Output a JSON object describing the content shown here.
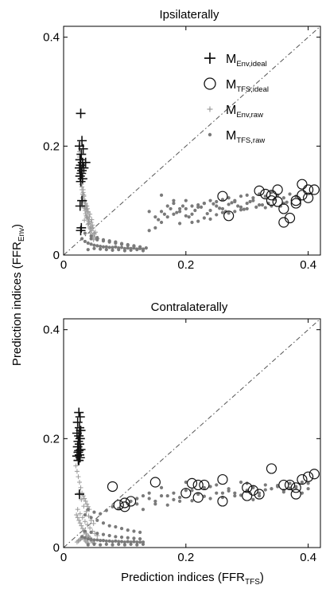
{
  "figure": {
    "ylabel_main": "Prediction indices (FFR",
    "ylabel_sub": "Env",
    "ylabel_end": ")",
    "xlabel_main": "Prediction indices (FFR",
    "xlabel_sub": "TFS",
    "xlabel_end": ")"
  },
  "legend": [
    {
      "label": "M",
      "sub": "Env,ideal",
      "marker": "plus",
      "color": "#111111"
    },
    {
      "label": "M",
      "sub": "TFS,ideal",
      "marker": "circle",
      "color": "#111111"
    },
    {
      "label": "M",
      "sub": "Env,raw",
      "marker": "small-plus",
      "color": "#8c8c8c"
    },
    {
      "label": "M",
      "sub": "TFS,raw",
      "marker": "dot",
      "color": "#7a7a7a"
    }
  ],
  "colors": {
    "ideal": "#111111",
    "raw_env": "#9a9a9a",
    "raw_tfs": "#7a7a7a",
    "diagonal": "#555555"
  },
  "chart_data": [
    {
      "type": "scatter",
      "title": "Ipsilaterally",
      "xlim": [
        0,
        0.42
      ],
      "ylim": [
        0,
        0.42
      ],
      "x_ticks": [
        0,
        0.2,
        0.4
      ],
      "x_tick_labels": [
        "0",
        "0.2",
        "0.4"
      ],
      "y_ticks": [
        0,
        0.2,
        0.4
      ],
      "y_tick_labels": [
        "0",
        "0.2",
        "0.4"
      ],
      "reference_line": "y = x (dash-dot)",
      "series": [
        {
          "name": "M_Env,ideal",
          "marker": "plus",
          "x": [
            0.028,
            0.03,
            0.026,
            0.032,
            0.029,
            0.027,
            0.031,
            0.028,
            0.033,
            0.026,
            0.03,
            0.029,
            0.027,
            0.031,
            0.028,
            0.03,
            0.027,
            0.036,
            0.029,
            0.028
          ],
          "y": [
            0.26,
            0.21,
            0.2,
            0.195,
            0.185,
            0.175,
            0.17,
            0.165,
            0.16,
            0.16,
            0.155,
            0.15,
            0.145,
            0.14,
            0.135,
            0.1,
            0.09,
            0.17,
            0.05,
            0.045
          ]
        },
        {
          "name": "M_TFS,ideal",
          "marker": "circle",
          "x": [
            0.26,
            0.27,
            0.32,
            0.33,
            0.34,
            0.35,
            0.35,
            0.36,
            0.37,
            0.38,
            0.38,
            0.39,
            0.39,
            0.4,
            0.4,
            0.41,
            0.36,
            0.34
          ],
          "y": [
            0.108,
            0.072,
            0.118,
            0.112,
            0.11,
            0.12,
            0.098,
            0.085,
            0.068,
            0.1,
            0.095,
            0.13,
            0.11,
            0.12,
            0.105,
            0.12,
            0.06,
            0.1
          ]
        },
        {
          "name": "M_Env,raw",
          "marker": "small-plus",
          "x": [
            0.025,
            0.028,
            0.03,
            0.032,
            0.035,
            0.038,
            0.04,
            0.042,
            0.045,
            0.048,
            0.05,
            0.026,
            0.029,
            0.033,
            0.036,
            0.039,
            0.043,
            0.046,
            0.027,
            0.031,
            0.034,
            0.037,
            0.041,
            0.044,
            0.03,
            0.035,
            0.04,
            0.045,
            0.05,
            0.055,
            0.028,
            0.032,
            0.036,
            0.04,
            0.047,
            0.052,
            0.026,
            0.03,
            0.034,
            0.038,
            0.042,
            0.048,
            0.029,
            0.033,
            0.037,
            0.041,
            0.046,
            0.051,
            0.027,
            0.031,
            0.035,
            0.039,
            0.043,
            0.049,
            0.032,
            0.036,
            0.04,
            0.044,
            0.03,
            0.034
          ],
          "y": [
            0.2,
            0.16,
            0.14,
            0.12,
            0.1,
            0.09,
            0.08,
            0.07,
            0.06,
            0.05,
            0.04,
            0.18,
            0.13,
            0.11,
            0.095,
            0.085,
            0.075,
            0.065,
            0.15,
            0.105,
            0.088,
            0.072,
            0.058,
            0.048,
            0.12,
            0.082,
            0.066,
            0.052,
            0.038,
            0.03,
            0.17,
            0.115,
            0.092,
            0.078,
            0.055,
            0.042,
            0.19,
            0.125,
            0.098,
            0.07,
            0.06,
            0.035,
            0.145,
            0.108,
            0.084,
            0.062,
            0.045,
            0.032,
            0.16,
            0.112,
            0.086,
            0.068,
            0.05,
            0.028,
            0.1,
            0.076,
            0.056,
            0.04,
            0.09,
            0.064
          ]
        },
        {
          "name": "M_TFS,raw",
          "marker": "dot",
          "x": [
            0.03,
            0.035,
            0.04,
            0.045,
            0.05,
            0.055,
            0.06,
            0.065,
            0.07,
            0.075,
            0.08,
            0.085,
            0.09,
            0.095,
            0.1,
            0.105,
            0.11,
            0.115,
            0.12,
            0.125,
            0.13,
            0.045,
            0.055,
            0.065,
            0.075,
            0.085,
            0.095,
            0.105,
            0.115,
            0.125,
            0.04,
            0.05,
            0.06,
            0.07,
            0.08,
            0.09,
            0.1,
            0.11,
            0.12,
            0.13,
            0.035,
            0.045,
            0.055,
            0.065,
            0.075,
            0.085,
            0.095,
            0.105,
            0.115,
            0.125,
            0.135,
            0.14,
            0.15,
            0.16,
            0.17,
            0.18,
            0.19,
            0.2,
            0.21,
            0.22,
            0.23,
            0.24,
            0.25,
            0.26,
            0.27,
            0.28,
            0.29,
            0.3,
            0.31,
            0.32,
            0.33,
            0.34,
            0.35,
            0.36,
            0.37,
            0.38,
            0.15,
            0.16,
            0.17,
            0.18,
            0.19,
            0.2,
            0.21,
            0.22,
            0.23,
            0.24,
            0.25,
            0.26,
            0.27,
            0.28,
            0.29,
            0.3,
            0.31,
            0.32,
            0.14,
            0.155,
            0.165,
            0.175,
            0.185,
            0.195,
            0.205,
            0.215,
            0.225,
            0.235,
            0.245,
            0.255,
            0.265,
            0.275,
            0.285,
            0.295,
            0.305,
            0.315,
            0.325,
            0.335,
            0.345,
            0.355,
            0.365,
            0.16,
            0.18,
            0.2,
            0.22,
            0.24,
            0.26,
            0.28,
            0.3,
            0.34,
            0.36,
            0.19,
            0.21,
            0.23,
            0.25,
            0.27,
            0.29,
            0.33
          ],
          "y": [
            0.03,
            0.025,
            0.022,
            0.02,
            0.018,
            0.017,
            0.016,
            0.015,
            0.015,
            0.014,
            0.014,
            0.015,
            0.013,
            0.014,
            0.012,
            0.013,
            0.012,
            0.013,
            0.011,
            0.012,
            0.011,
            0.03,
            0.028,
            0.026,
            0.024,
            0.022,
            0.02,
            0.018,
            0.016,
            0.014,
            0.01,
            0.012,
            0.011,
            0.01,
            0.009,
            0.01,
            0.008,
            0.009,
            0.01,
            0.008,
            0.04,
            0.035,
            0.032,
            0.028,
            0.026,
            0.024,
            0.021,
            0.019,
            0.017,
            0.015,
            0.013,
            0.045,
            0.05,
            0.06,
            0.07,
            0.075,
            0.08,
            0.085,
            0.09,
            0.092,
            0.095,
            0.1,
            0.098,
            0.102,
            0.105,
            0.1,
            0.108,
            0.11,
            0.105,
            0.112,
            0.108,
            0.115,
            0.11,
            0.105,
            0.112,
            0.108,
            0.07,
            0.08,
            0.09,
            0.095,
            0.085,
            0.1,
            0.075,
            0.088,
            0.095,
            0.082,
            0.09,
            0.085,
            0.093,
            0.098,
            0.088,
            0.095,
            0.1,
            0.092,
            0.08,
            0.065,
            0.075,
            0.085,
            0.078,
            0.09,
            0.07,
            0.082,
            0.088,
            0.076,
            0.094,
            0.086,
            0.08,
            0.096,
            0.09,
            0.084,
            0.098,
            0.088,
            0.092,
            0.095,
            0.102,
            0.09,
            0.097,
            0.11,
            0.1,
            0.072,
            0.062,
            0.066,
            0.078,
            0.08,
            0.085,
            0.09,
            0.095,
            0.058,
            0.06,
            0.068,
            0.074,
            0.077,
            0.083,
            0.087
          ]
        }
      ]
    },
    {
      "type": "scatter",
      "title": "Contralaterally",
      "xlim": [
        0,
        0.42
      ],
      "ylim": [
        0,
        0.42
      ],
      "x_ticks": [
        0,
        0.2,
        0.4
      ],
      "x_tick_labels": [
        "0",
        "0.2",
        "0.4"
      ],
      "y_ticks": [
        0,
        0.2,
        0.4
      ],
      "y_tick_labels": [
        "0",
        "0.2",
        "0.4"
      ],
      "reference_line": "y = x (dash-dot)",
      "series": [
        {
          "name": "M_Env,ideal",
          "marker": "plus",
          "x": [
            0.025,
            0.027,
            0.023,
            0.026,
            0.028,
            0.022,
            0.025,
            0.027,
            0.024,
            0.026,
            0.023,
            0.028,
            0.025,
            0.024,
            0.026,
            0.022,
            0.027,
            0.025,
            0.024,
            0.026
          ],
          "y": [
            0.248,
            0.24,
            0.23,
            0.22,
            0.215,
            0.21,
            0.205,
            0.2,
            0.195,
            0.19,
            0.185,
            0.18,
            0.178,
            0.175,
            0.17,
            0.168,
            0.165,
            0.16,
            0.16,
            0.098
          ]
        },
        {
          "name": "M_TFS,ideal",
          "marker": "circle",
          "x": [
            0.08,
            0.09,
            0.1,
            0.1,
            0.11,
            0.15,
            0.2,
            0.21,
            0.22,
            0.22,
            0.23,
            0.26,
            0.26,
            0.3,
            0.3,
            0.31,
            0.32,
            0.34,
            0.36,
            0.37,
            0.38,
            0.38,
            0.39,
            0.4,
            0.41
          ],
          "y": [
            0.112,
            0.078,
            0.075,
            0.082,
            0.085,
            0.12,
            0.1,
            0.118,
            0.115,
            0.092,
            0.115,
            0.085,
            0.125,
            0.11,
            0.095,
            0.105,
            0.098,
            0.145,
            0.115,
            0.115,
            0.11,
            0.098,
            0.125,
            0.13,
            0.135
          ]
        },
        {
          "name": "M_Env,raw",
          "marker": "small-plus",
          "x": [
            0.02,
            0.022,
            0.024,
            0.026,
            0.028,
            0.03,
            0.032,
            0.034,
            0.036,
            0.038,
            0.04,
            0.042,
            0.021,
            0.023,
            0.025,
            0.027,
            0.029,
            0.031,
            0.033,
            0.035,
            0.037,
            0.039,
            0.041,
            0.043,
            0.022,
            0.024,
            0.026,
            0.028,
            0.03,
            0.032,
            0.034,
            0.036,
            0.038,
            0.04,
            0.044,
            0.046,
            0.048,
            0.05,
            0.023,
            0.027,
            0.031,
            0.035,
            0.039,
            0.043,
            0.047,
            0.051,
            0.055,
            0.025,
            0.029,
            0.033,
            0.037,
            0.041,
            0.045,
            0.049
          ],
          "y": [
            0.15,
            0.14,
            0.13,
            0.12,
            0.11,
            0.1,
            0.095,
            0.09,
            0.085,
            0.08,
            0.075,
            0.07,
            0.06,
            0.055,
            0.05,
            0.045,
            0.04,
            0.035,
            0.03,
            0.028,
            0.025,
            0.022,
            0.02,
            0.018,
            0.01,
            0.012,
            0.014,
            0.016,
            0.018,
            0.02,
            0.015,
            0.012,
            0.01,
            0.008,
            0.014,
            0.012,
            0.01,
            0.008,
            0.07,
            0.062,
            0.055,
            0.048,
            0.042,
            0.036,
            0.03,
            0.026,
            0.022,
            0.1,
            0.088,
            0.076,
            0.066,
            0.058,
            0.05,
            0.044
          ]
        },
        {
          "name": "M_TFS,raw",
          "marker": "dot",
          "x": [
            0.03,
            0.035,
            0.04,
            0.045,
            0.05,
            0.055,
            0.06,
            0.065,
            0.07,
            0.075,
            0.08,
            0.085,
            0.09,
            0.095,
            0.1,
            0.105,
            0.11,
            0.115,
            0.12,
            0.125,
            0.13,
            0.035,
            0.045,
            0.055,
            0.065,
            0.075,
            0.085,
            0.095,
            0.105,
            0.115,
            0.125,
            0.04,
            0.05,
            0.06,
            0.07,
            0.08,
            0.09,
            0.1,
            0.11,
            0.12,
            0.13,
            0.035,
            0.045,
            0.055,
            0.065,
            0.075,
            0.085,
            0.095,
            0.105,
            0.115,
            0.125,
            0.04,
            0.05,
            0.06,
            0.07,
            0.08,
            0.09,
            0.11,
            0.12,
            0.13,
            0.14,
            0.15,
            0.16,
            0.17,
            0.18,
            0.19,
            0.2,
            0.21,
            0.22,
            0.23,
            0.24,
            0.25,
            0.26,
            0.27,
            0.28,
            0.29,
            0.3,
            0.31,
            0.32,
            0.33,
            0.34,
            0.35,
            0.36,
            0.37,
            0.38,
            0.39,
            0.4,
            0.12,
            0.14,
            0.16,
            0.18,
            0.2,
            0.22,
            0.24,
            0.26,
            0.28,
            0.3,
            0.32,
            0.34,
            0.36,
            0.38,
            0.4,
            0.13,
            0.15,
            0.17,
            0.19,
            0.21,
            0.23,
            0.25,
            0.27,
            0.29,
            0.31,
            0.33,
            0.35,
            0.37,
            0.39
          ],
          "y": [
            0.02,
            0.018,
            0.016,
            0.015,
            0.014,
            0.014,
            0.013,
            0.013,
            0.012,
            0.012,
            0.011,
            0.012,
            0.011,
            0.011,
            0.01,
            0.011,
            0.01,
            0.011,
            0.01,
            0.01,
            0.01,
            0.03,
            0.028,
            0.026,
            0.024,
            0.022,
            0.02,
            0.019,
            0.018,
            0.017,
            0.016,
            0.005,
            0.006,
            0.005,
            0.006,
            0.005,
            0.006,
            0.005,
            0.006,
            0.005,
            0.006,
            0.06,
            0.055,
            0.05,
            0.045,
            0.04,
            0.038,
            0.035,
            0.032,
            0.03,
            0.028,
            0.07,
            0.065,
            0.062,
            0.068,
            0.075,
            0.072,
            0.085,
            0.09,
            0.095,
            0.1,
            0.08,
            0.11,
            0.095,
            0.1,
            0.085,
            0.12,
            0.105,
            0.098,
            0.11,
            0.09,
            0.115,
            0.1,
            0.108,
            0.095,
            0.12,
            0.105,
            0.11,
            0.1,
            0.115,
            0.108,
            0.112,
            0.105,
            0.118,
            0.11,
            0.12,
            0.108,
            0.08,
            0.09,
            0.095,
            0.088,
            0.105,
            0.098,
            0.112,
            0.092,
            0.1,
            0.118,
            0.095,
            0.108,
            0.102,
            0.112,
            0.118,
            0.07,
            0.085,
            0.078,
            0.092,
            0.086,
            0.094,
            0.1,
            0.104,
            0.096,
            0.088,
            0.106,
            0.114,
            0.109,
            0.1
          ]
        }
      ]
    }
  ]
}
